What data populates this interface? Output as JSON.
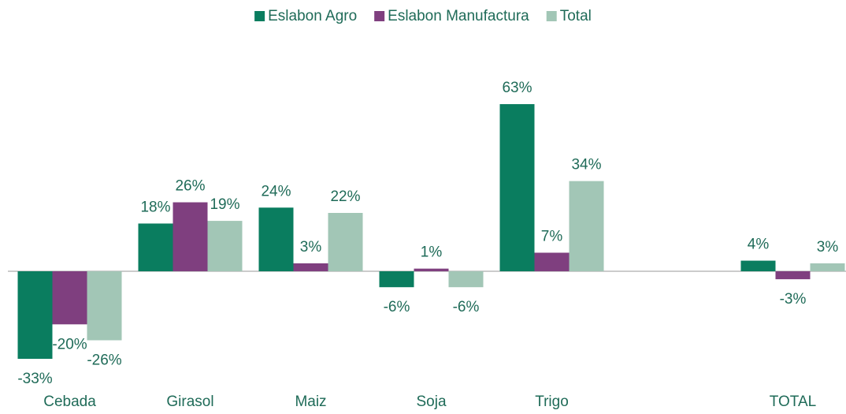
{
  "chart_data": {
    "type": "bar",
    "categories": [
      "Cebada",
      "Girasol",
      "Maiz",
      "Soja",
      "Trigo",
      null,
      "TOTAL"
    ],
    "series": [
      {
        "name": "Eslabon Agro",
        "color": "#0a7d5f",
        "values": [
          -33,
          18,
          24,
          -6,
          63,
          null,
          4
        ],
        "value_labels": [
          "-33%",
          "18%",
          "24%",
          "-6%",
          "63%",
          null,
          "4%"
        ]
      },
      {
        "name": "Eslabon Manufactura",
        "color": "#7f3f7f",
        "values": [
          -20,
          26,
          3,
          1,
          7,
          null,
          -3
        ],
        "value_labels": [
          "-20%",
          "26%",
          "3%",
          "1%",
          "7%",
          null,
          "-3%"
        ]
      },
      {
        "name": "Total",
        "color": "#a2c6b6",
        "values": [
          -26,
          19,
          22,
          -6,
          34,
          null,
          3
        ],
        "value_labels": [
          "-26%",
          "19%",
          "22%",
          "-6%",
          "34%",
          null,
          "3%"
        ]
      }
    ],
    "ylim": [
      -40,
      70
    ],
    "legend": "top"
  }
}
